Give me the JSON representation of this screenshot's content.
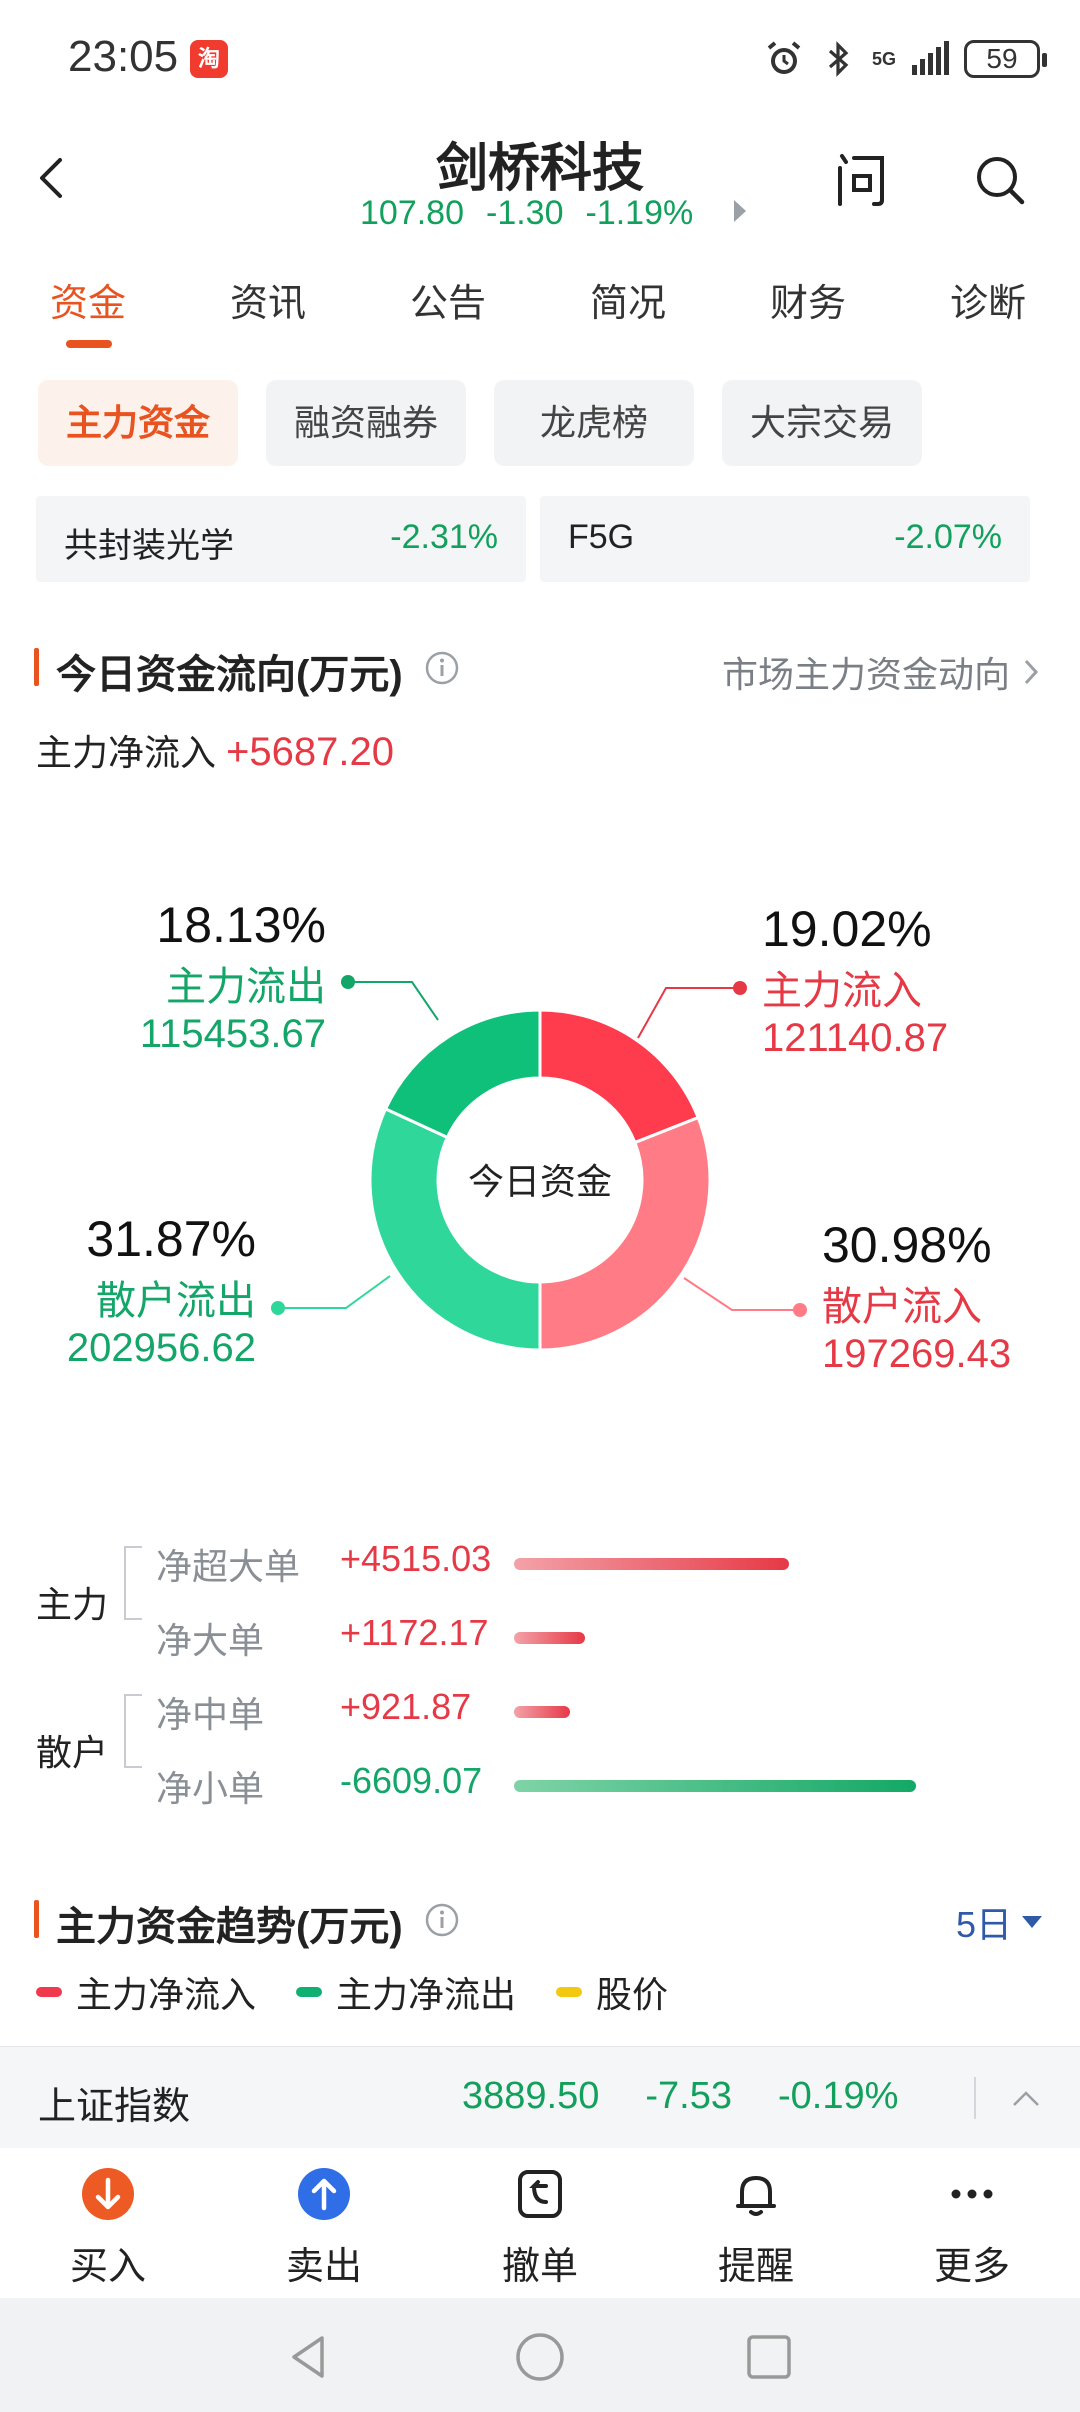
{
  "status_bar": {
    "time": "23:05",
    "app_badge": "淘",
    "network": "5G",
    "battery": "59"
  },
  "header": {
    "stock_name": "剑桥科技",
    "price": "107.80",
    "change": "-1.30",
    "change_pct": "-1.19%",
    "ask_label": "问"
  },
  "main_tabs": [
    "资金",
    "资讯",
    "公告",
    "简况",
    "财务",
    "诊断"
  ],
  "sub_tabs": [
    "主力资金",
    "融资融券",
    "龙虎榜",
    "大宗交易"
  ],
  "concepts": [
    {
      "name": "共封装光学",
      "value": "-2.31%"
    },
    {
      "name": "F5G",
      "value": "-2.07%"
    }
  ],
  "flow_section": {
    "title": "今日资金流向(万元)",
    "link": "市场主力资金动向",
    "net_label": "主力净流入",
    "net_value": "+5687.20",
    "donut_center": "今日资金",
    "segments": [
      {
        "key": "main_out",
        "pct": "18.13%",
        "label": "主力流出",
        "amount": "115453.67",
        "color": "#0fc07a"
      },
      {
        "key": "main_in",
        "pct": "19.02%",
        "label": "主力流入",
        "amount": "121140.87",
        "color": "#ff3b4e"
      },
      {
        "key": "retail_out",
        "pct": "31.87%",
        "label": "散户流出",
        "amount": "202956.62",
        "color": "#2fd89a"
      },
      {
        "key": "retail_in",
        "pct": "30.98%",
        "label": "散户流入",
        "amount": "197269.43",
        "color": "#ff7b86"
      }
    ]
  },
  "breakdown": {
    "main_label": "主力",
    "retail_label": "散户",
    "rows": [
      {
        "name": "净超大单",
        "value": "+4515.03",
        "amount": 4515.03
      },
      {
        "name": "净大单",
        "value": "+1172.17",
        "amount": 1172.17
      },
      {
        "name": "净中单",
        "value": "+921.87",
        "amount": 921.87
      },
      {
        "name": "净小单",
        "value": "-6609.07",
        "amount": -6609.07
      }
    ]
  },
  "trend_section": {
    "title": "主力资金趋势(万元)",
    "period": "5日",
    "legend": [
      {
        "label": "主力净流入",
        "color": "#f0394d"
      },
      {
        "label": "主力净流出",
        "color": "#10b073"
      },
      {
        "label": "股价",
        "color": "#f2c811"
      }
    ]
  },
  "index_bar": {
    "name": "上证指数",
    "value": "3889.50",
    "change": "-7.53",
    "change_pct": "-0.19%"
  },
  "actions": [
    {
      "label": "买入",
      "icon": "arrow-down-circle-icon"
    },
    {
      "label": "卖出",
      "icon": "arrow-up-circle-icon"
    },
    {
      "label": "撤单",
      "icon": "cancel-order-icon"
    },
    {
      "label": "提醒",
      "icon": "bell-icon"
    },
    {
      "label": "更多",
      "icon": "more-dots-icon"
    }
  ]
}
